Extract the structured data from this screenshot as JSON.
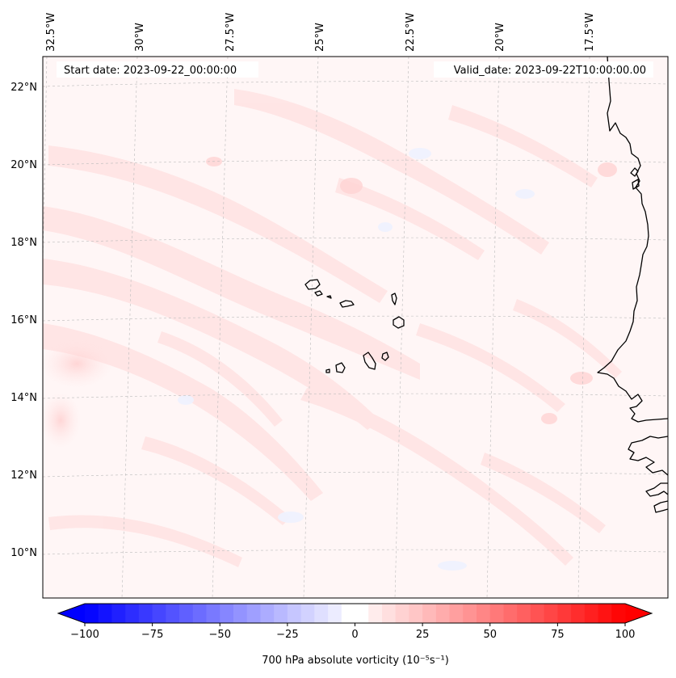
{
  "map": {
    "start_label": "Start date: 2023-09-22_00:00:00",
    "valid_label": "Valid_date: 2023-09-22T10:00:00.00",
    "lon_labels": [
      "32.5°W",
      "30°W",
      "27.5°W",
      "25°W",
      "22.5°W",
      "20°W",
      "17.5°W"
    ],
    "lat_labels": [
      "22°N",
      "20°N",
      "18°N",
      "16°N",
      "14°N",
      "12°N",
      "10°N"
    ],
    "land_outline_color": "#000000",
    "field_colors": {
      "negative": "#0000ff",
      "neutral": "#ffffff",
      "positive": "#ff0000"
    }
  },
  "colorbar": {
    "label": "700 hPa absolute vorticity (10⁻⁵s⁻¹)",
    "min": -100,
    "max": 100,
    "step": 5,
    "tick_labels": [
      "−100",
      "−75",
      "−50",
      "−25",
      "0",
      "25",
      "50",
      "75",
      "100"
    ],
    "extend": "both"
  }
}
